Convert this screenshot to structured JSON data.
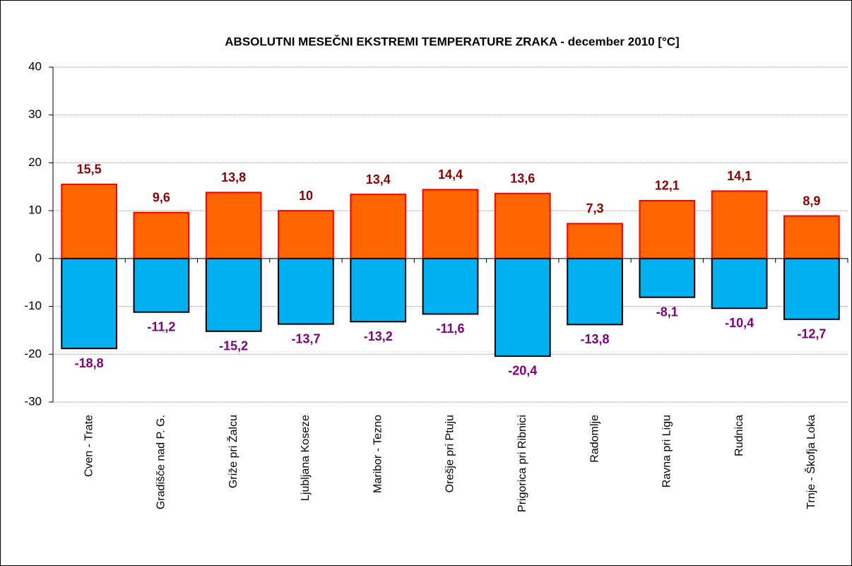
{
  "chart_data": {
    "type": "bar",
    "title": "ABSOLUTNI MESEČNI EKSTREMI TEMPERATURE ZRAKA - december 2010 [°C]",
    "categories": [
      "Cven - Trate",
      "Gradišče nad P. G.",
      "Griže pri Žalcu",
      "Ljubljana Koseze",
      "Maribor - Tezno",
      "Orešje pri Ptuju",
      "Prigorica pri Ribnici",
      "Radomlje",
      "Ravna pri Ligu",
      "Rudnica",
      "Trnje - Škofja Loka"
    ],
    "series": [
      {
        "color": "#FF6600",
        "edge": "#FF0000",
        "label_color": "#8B0000",
        "values": [
          15.5,
          9.6,
          13.8,
          10,
          13.4,
          14.4,
          13.6,
          7.3,
          12.1,
          14.1,
          8.9
        ],
        "value_labels": [
          "15,5",
          "9,6",
          "13,8",
          "10",
          "13,4",
          "14,4",
          "13,6",
          "7,3",
          "12,1",
          "14,1",
          "8,9"
        ]
      },
      {
        "color": "#00B0F0",
        "edge": "#000000",
        "label_color": "#800080",
        "values": [
          -18.8,
          -11.2,
          -15.2,
          -13.7,
          -13.2,
          -11.6,
          -20.4,
          -13.8,
          -8.1,
          -10.4,
          -12.7
        ],
        "value_labels": [
          "-18,8",
          "-11,2",
          "-15,2",
          "-13,7",
          "-13,2",
          "-11,6",
          "-20,4",
          "-13,8",
          "-8,1",
          "-10,4",
          "-12,7"
        ]
      }
    ],
    "ylim": [
      -30,
      40
    ],
    "yticks": [
      -30,
      -20,
      -10,
      0,
      10,
      20,
      30,
      40
    ],
    "grid": true
  }
}
